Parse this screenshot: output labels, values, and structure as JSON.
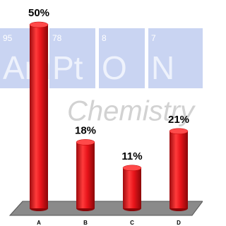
{
  "chart_data": {
    "type": "bar3d",
    "categories": [
      "A",
      "B",
      "C",
      "D"
    ],
    "values": [
      50,
      18,
      11,
      21
    ],
    "value_labels": [
      "50%",
      "18%",
      "11%",
      "21%"
    ],
    "color": "#e8141a",
    "watermark": {
      "tiles": [
        {
          "number": "95",
          "symbol": "Am"
        },
        {
          "number": "78",
          "symbol": "Pt"
        },
        {
          "number": "8",
          "symbol": "O"
        },
        {
          "number": "7",
          "symbol": "N"
        }
      ],
      "text": "Chemistry"
    }
  }
}
